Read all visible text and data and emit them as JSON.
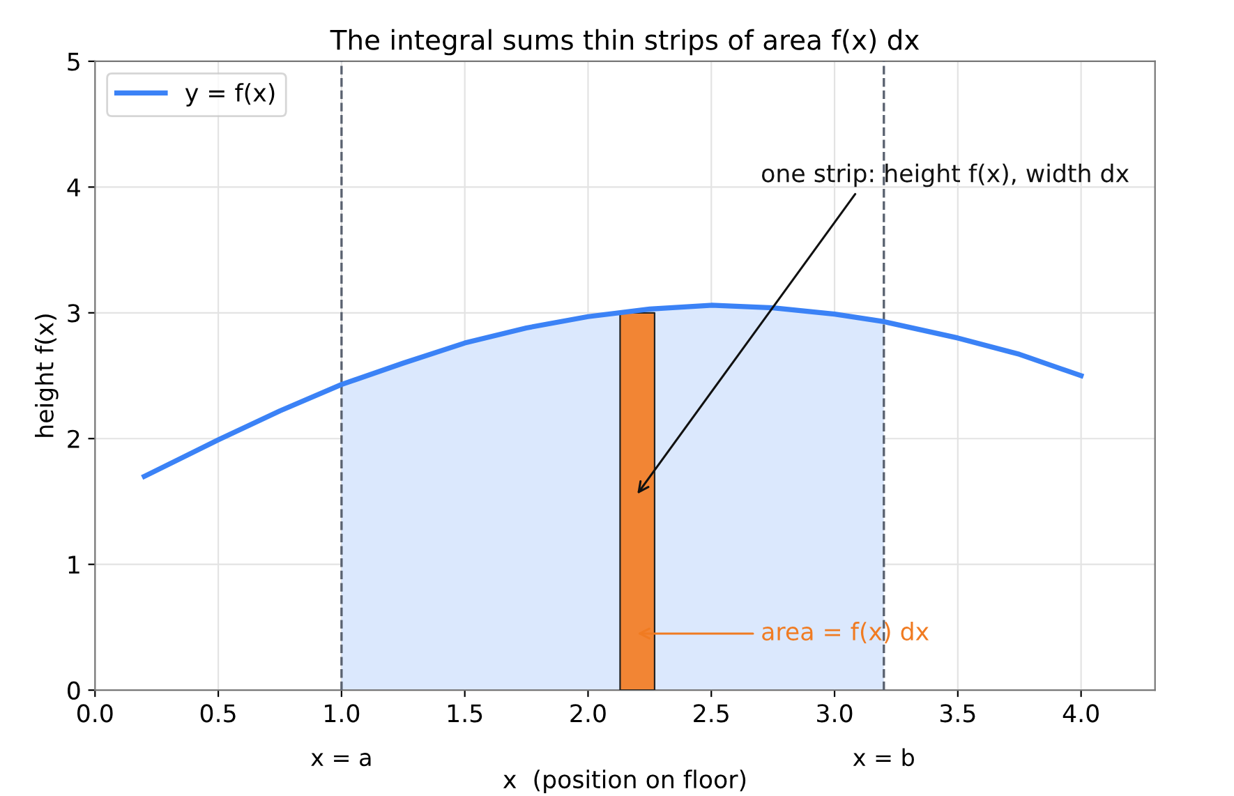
{
  "chart_data": {
    "type": "line",
    "title": "The integral sums thin strips of area f(x) dx",
    "xlabel": "x  (position on floor)",
    "ylabel": "height f(x)",
    "series": [
      {
        "name": "y = f(x)",
        "color": "#3b82f6",
        "x": [
          0.2,
          0.5,
          0.75,
          1.0,
          1.25,
          1.5,
          1.75,
          2.0,
          2.25,
          2.5,
          2.75,
          3.0,
          3.2,
          3.5,
          3.75,
          4.0
        ],
        "values": [
          1.7,
          1.99,
          2.22,
          2.43,
          2.6,
          2.76,
          2.88,
          2.97,
          3.03,
          3.06,
          3.04,
          2.99,
          2.93,
          2.8,
          2.67,
          2.5
        ]
      },
      {
        "type": "area",
        "color": "#dbe8fd",
        "x": [
          1.0,
          1.25,
          1.5,
          1.75,
          2.0,
          2.25,
          2.5,
          2.75,
          3.0,
          3.2
        ],
        "values": [
          2.43,
          2.6,
          2.76,
          2.88,
          2.97,
          3.03,
          3.06,
          3.04,
          2.99,
          2.93
        ]
      },
      {
        "type": "area",
        "color": "#f28534",
        "x": [
          2.13,
          2.27
        ],
        "values": [
          3.0,
          3.0
        ]
      }
    ],
    "ref_lines": [
      {
        "axis": "x",
        "value": 1.0,
        "label": "x = a",
        "color": "#5a6270",
        "line_style": "dashed"
      },
      {
        "axis": "x",
        "value": 3.2,
        "label": "x = b",
        "color": "#5a6270",
        "line_style": "dashed"
      }
    ],
    "annotations": [
      "one strip: height f(x), width dx",
      "area = f(x) dx"
    ],
    "xlim": [
      0,
      4.3
    ],
    "ylim": [
      0,
      5
    ],
    "xticks": [
      {
        "value": 0,
        "label": "0.0"
      },
      0.5,
      {
        "value": 1,
        "label": "1.0"
      },
      1.5,
      {
        "value": 2,
        "label": "2.0"
      },
      2.5,
      {
        "value": 3,
        "label": "3.0"
      },
      3.5,
      {
        "value": 4,
        "label": "4.0"
      }
    ],
    "yticks": [
      0,
      1,
      2,
      3,
      4,
      5
    ],
    "grid": true,
    "legend": "top left"
  }
}
